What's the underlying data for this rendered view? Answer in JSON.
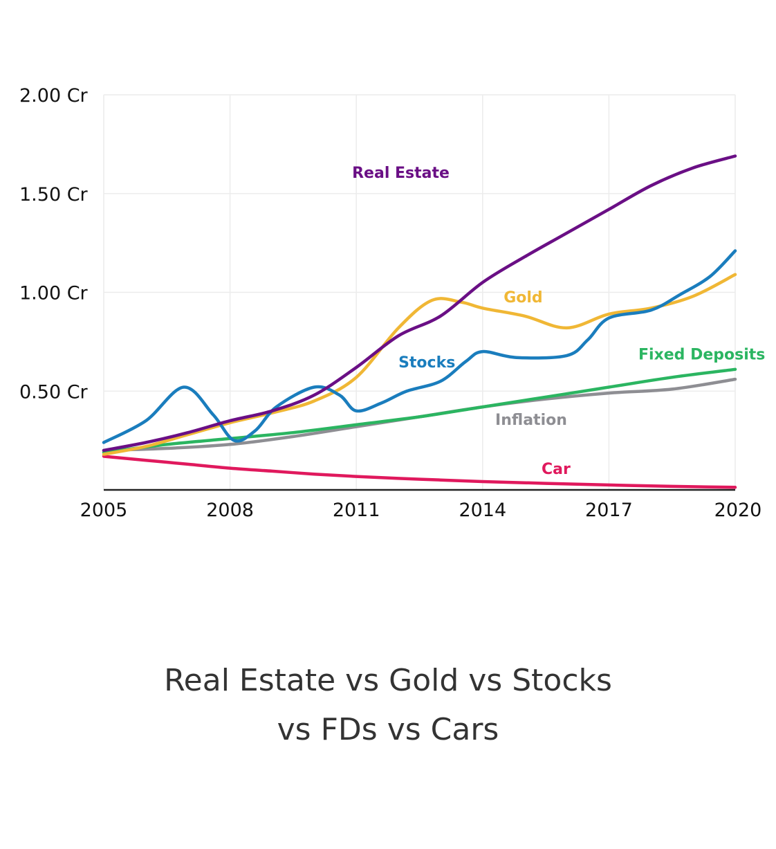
{
  "caption": {
    "line1": "Real Estate vs Gold vs Stocks",
    "line2": "vs FDs vs Cars"
  },
  "chart_data": {
    "type": "line",
    "title": "",
    "xlabel": "",
    "ylabel": "",
    "xlim": [
      2005,
      2020
    ],
    "ylim": [
      0,
      2.0
    ],
    "grid": true,
    "legend": "inline labels",
    "x_ticks": [
      {
        "value": 2005,
        "label": "2005"
      },
      {
        "value": 2008,
        "label": "2008"
      },
      {
        "value": 2011,
        "label": "2011"
      },
      {
        "value": 2014,
        "label": "2014"
      },
      {
        "value": 2017,
        "label": "2017"
      },
      {
        "value": 2020,
        "label": "2020"
      }
    ],
    "y_ticks": [
      {
        "value": 0.5,
        "label": "0.50 Cr"
      },
      {
        "value": 1.0,
        "label": "1.00 Cr"
      },
      {
        "value": 1.5,
        "label": "1.50 Cr"
      },
      {
        "value": 2.0,
        "label": "2.00 Cr"
      }
    ],
    "series": [
      {
        "name": "Real Estate",
        "color": "#6a0f85",
        "label_at": [
          2010.9,
          1.58
        ],
        "points": [
          [
            2005,
            0.2
          ],
          [
            2006,
            0.24
          ],
          [
            2007,
            0.29
          ],
          [
            2008,
            0.35
          ],
          [
            2009,
            0.4
          ],
          [
            2010,
            0.48
          ],
          [
            2011,
            0.62
          ],
          [
            2012,
            0.78
          ],
          [
            2013,
            0.88
          ],
          [
            2014,
            1.05
          ],
          [
            2015,
            1.18
          ],
          [
            2016,
            1.3
          ],
          [
            2017,
            1.42
          ],
          [
            2018,
            1.54
          ],
          [
            2019,
            1.63
          ],
          [
            2020,
            1.69
          ]
        ]
      },
      {
        "name": "Stocks",
        "color": "#1a7dbd",
        "label_at": [
          2012,
          0.62
        ],
        "points": [
          [
            2005,
            0.24
          ],
          [
            2006,
            0.35
          ],
          [
            2006.9,
            0.52
          ],
          [
            2007.6,
            0.38
          ],
          [
            2008.1,
            0.25
          ],
          [
            2008.6,
            0.3
          ],
          [
            2009.1,
            0.42
          ],
          [
            2010,
            0.52
          ],
          [
            2010.6,
            0.48
          ],
          [
            2011,
            0.4
          ],
          [
            2011.6,
            0.44
          ],
          [
            2012.2,
            0.5
          ],
          [
            2013,
            0.55
          ],
          [
            2013.6,
            0.65
          ],
          [
            2014,
            0.7
          ],
          [
            2014.8,
            0.67
          ],
          [
            2016,
            0.68
          ],
          [
            2016.5,
            0.76
          ],
          [
            2017,
            0.87
          ],
          [
            2018,
            0.91
          ],
          [
            2018.7,
            0.99
          ],
          [
            2019.4,
            1.08
          ],
          [
            2020,
            1.21
          ]
        ]
      },
      {
        "name": "Gold",
        "color": "#f0b735",
        "label_at": [
          2014.5,
          0.95
        ],
        "points": [
          [
            2005,
            0.18
          ],
          [
            2006,
            0.22
          ],
          [
            2007,
            0.28
          ],
          [
            2008,
            0.34
          ],
          [
            2009,
            0.39
          ],
          [
            2010,
            0.45
          ],
          [
            2011,
            0.57
          ],
          [
            2012,
            0.82
          ],
          [
            2012.8,
            0.96
          ],
          [
            2013.5,
            0.95
          ],
          [
            2014,
            0.92
          ],
          [
            2015,
            0.88
          ],
          [
            2016,
            0.82
          ],
          [
            2017,
            0.89
          ],
          [
            2018,
            0.92
          ],
          [
            2019,
            0.98
          ],
          [
            2020,
            1.09
          ]
        ]
      },
      {
        "name": "Fixed Deposits",
        "color": "#2bb561",
        "label_at": [
          2017.7,
          0.66
        ],
        "points": [
          [
            2005,
            0.19
          ],
          [
            2006.5,
            0.23
          ],
          [
            2008,
            0.26
          ],
          [
            2009.5,
            0.29
          ],
          [
            2011,
            0.33
          ],
          [
            2012.5,
            0.37
          ],
          [
            2014,
            0.42
          ],
          [
            2015.5,
            0.47
          ],
          [
            2017,
            0.52
          ],
          [
            2018.5,
            0.57
          ],
          [
            2020,
            0.61
          ]
        ]
      },
      {
        "name": "Inflation",
        "color": "#8e8e93",
        "label_at": [
          2014.3,
          0.33
        ],
        "points": [
          [
            2005,
            0.2
          ],
          [
            2006.5,
            0.21
          ],
          [
            2008,
            0.23
          ],
          [
            2009.5,
            0.27
          ],
          [
            2011,
            0.32
          ],
          [
            2012.5,
            0.37
          ],
          [
            2014,
            0.42
          ],
          [
            2015.5,
            0.46
          ],
          [
            2017,
            0.49
          ],
          [
            2018.5,
            0.51
          ],
          [
            2020,
            0.56
          ]
        ]
      },
      {
        "name": "Car",
        "color": "#e0195d",
        "label_at": [
          2015.4,
          0.08
        ],
        "points": [
          [
            2005,
            0.17
          ],
          [
            2006,
            0.15
          ],
          [
            2007,
            0.13
          ],
          [
            2008,
            0.11
          ],
          [
            2009,
            0.095
          ],
          [
            2010,
            0.08
          ],
          [
            2011,
            0.068
          ],
          [
            2012,
            0.058
          ],
          [
            2013,
            0.05
          ],
          [
            2014,
            0.042
          ],
          [
            2015,
            0.036
          ],
          [
            2016,
            0.03
          ],
          [
            2017,
            0.025
          ],
          [
            2018,
            0.02
          ],
          [
            2019,
            0.016
          ],
          [
            2020,
            0.013
          ]
        ]
      }
    ]
  }
}
